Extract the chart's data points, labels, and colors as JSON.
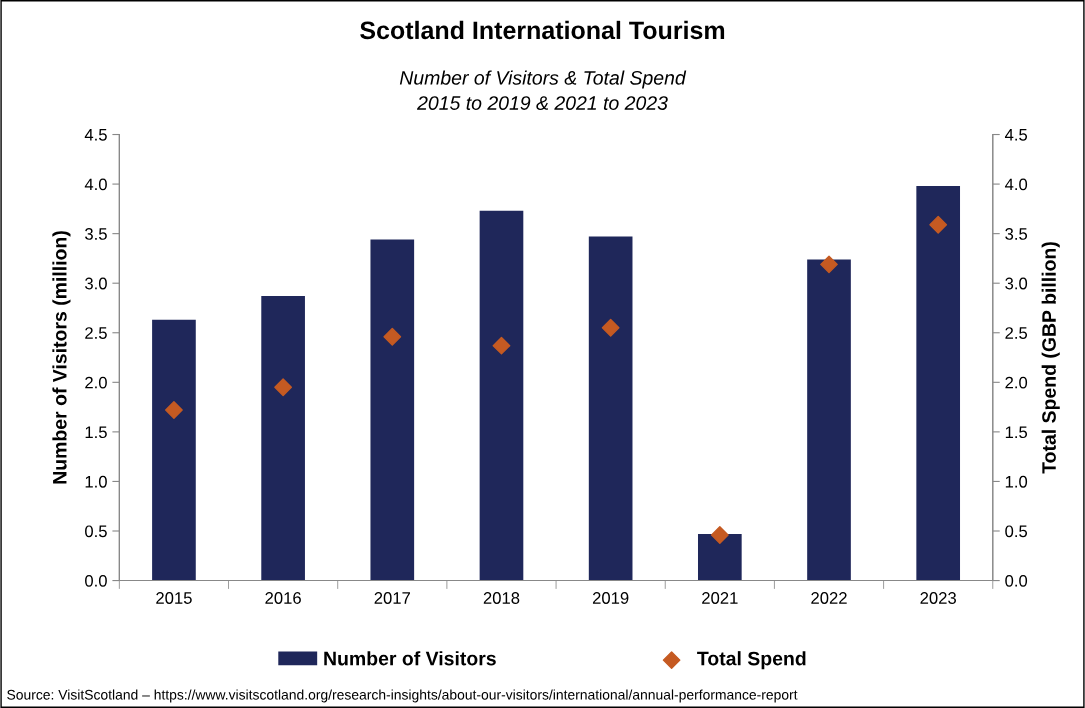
{
  "chart_data": {
    "type": "bar",
    "title": "Scotland International Tourism",
    "subtitle": "Number of Visitors & Total Spend\n2015 to 2019 & 2021 to 2023",
    "categories": [
      "2015",
      "2016",
      "2017",
      "2018",
      "2019",
      "2021",
      "2022",
      "2023"
    ],
    "series": [
      {
        "name": "Number of Visitors",
        "color": "#1f275a",
        "values": [
          2.63,
          2.87,
          3.44,
          3.73,
          3.47,
          0.47,
          3.24,
          3.98
        ]
      },
      {
        "name": "Total Spend",
        "type": "scatter",
        "axis": "y2",
        "marker": "diamond",
        "color": "#c55a22",
        "values": [
          1.72,
          1.95,
          2.46,
          2.37,
          2.55,
          0.46,
          3.19,
          3.59
        ]
      }
    ],
    "ylabel": "Number of Visitors (million)",
    "y2label": "Total Spend (GBP billion)",
    "ylim": [
      0,
      4.5
    ],
    "yticks": [
      {
        "value": 0,
        "label": "0.0"
      },
      0.5,
      {
        "value": 1,
        "label": "1.0"
      },
      1.5,
      {
        "value": 2,
        "label": "2.0"
      },
      2.5,
      {
        "value": 3,
        "label": "3.0"
      },
      3.5,
      {
        "value": 4,
        "label": "4.0"
      },
      4.5
    ],
    "y2lim": [
      0,
      4.5
    ],
    "y2ticks": [
      {
        "value": 0,
        "label": "0.0"
      },
      0.5,
      {
        "value": 1,
        "label": "1.0"
      },
      1.5,
      {
        "value": 2,
        "label": "2.0"
      },
      2.5,
      {
        "value": 3,
        "label": "3.0"
      },
      3.5,
      {
        "value": 4,
        "label": "4.0"
      },
      4.5
    ],
    "grid": false,
    "legend": "bottom",
    "annotations": [
      "Source: VisitScotland – https://www.visitscotland.org/research-insights/about-our-visitors/international/annual-performance-report"
    ]
  }
}
